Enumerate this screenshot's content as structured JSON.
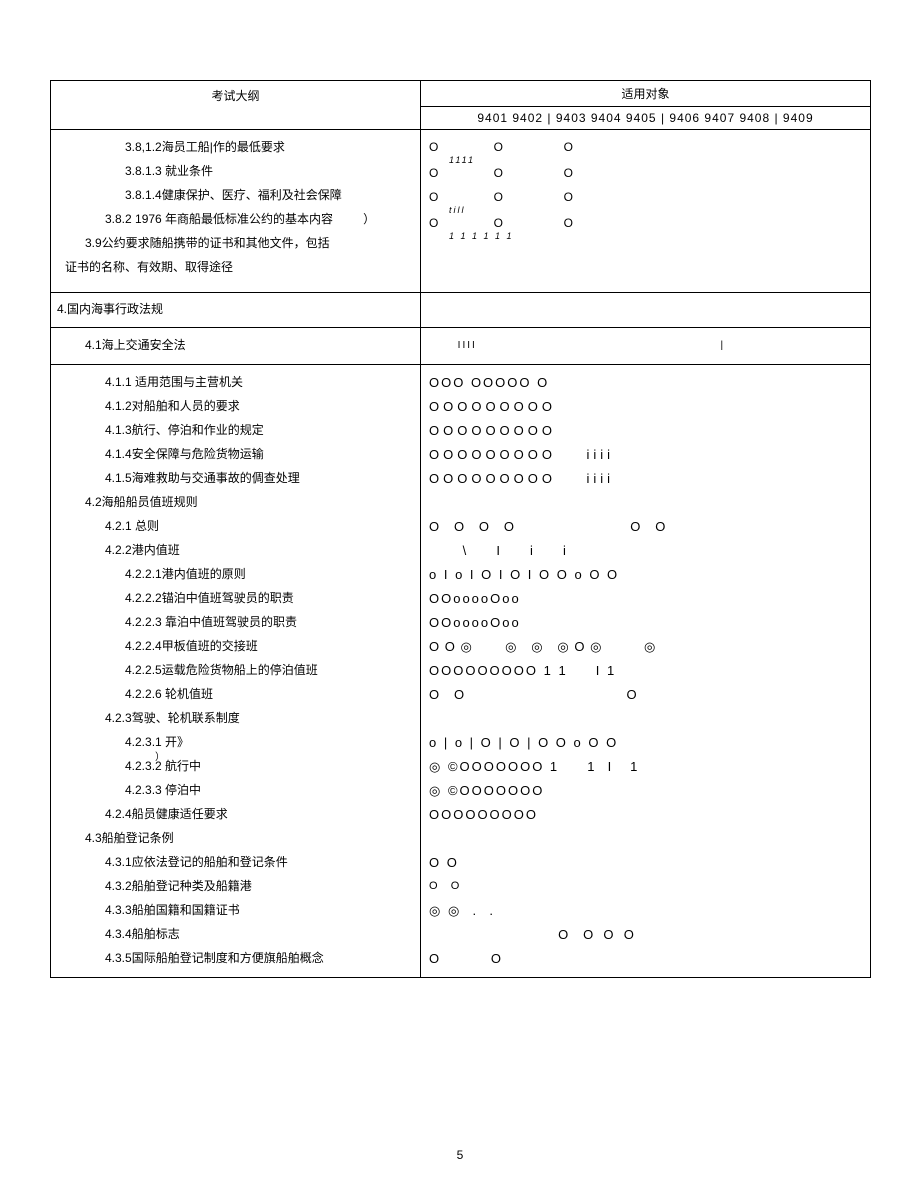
{
  "header": {
    "left": "考试大纲",
    "right": "适用对象",
    "codes": "9401 9402 | 9403 9404 9405 | 9406 9407 9408 | 9409"
  },
  "section1": {
    "items": [
      {
        "label": "3.8,1.2海员工船|作的最低要求",
        "marks": "O          O           O",
        "sub": "1111"
      },
      {
        "label": "3.8.1.3 就业条件",
        "marks": "O          O           O"
      },
      {
        "label": "3.8.1.4健康保护、医疗、福利及社会保障",
        "marks": "O          O           O",
        "sub": "till"
      },
      {
        "label": "3.8.2 1976 年商船最低标准公约的基本内容",
        "suffix": "）",
        "marks": "O          O           O",
        "sub": "1     1    1      1     1     1"
      },
      {
        "label": "3.9公约要求随船携带的证书和其他文件，包括",
        "marks": ""
      },
      {
        "label": "证书的名称、有效期、取得途径",
        "marks": "",
        "noindent": true
      }
    ]
  },
  "section2_header": "4.国内海事行政法规",
  "section2": {
    "items": [
      {
        "label": "4.1海上交通安全法",
        "marks": "      IIII                                                   |",
        "indent": 1
      },
      {
        "label": "4.1.1   适用范围与主营机关",
        "marks": "OOO OOOOO O",
        "indent": 2
      },
      {
        "label": "4.1.2对船舶和人员的要求",
        "marks": "OOOOOOOOO",
        "indent": 2,
        "circles": true
      },
      {
        "label": "4.1.3航行、停泊和作业的规定",
        "marks": "OOOOOOOOO",
        "indent": 2,
        "circles": true
      },
      {
        "label": "4.1.4安全保障与危险货物运输",
        "marks": "OOOOOOOOO    iiii",
        "indent": 2,
        "circles9": true
      },
      {
        "label": "4.1.5海难救助与交通事故的倜查处理",
        "marks": "OOOOOOOOO    iiii",
        "indent": 2,
        "circles9": true
      },
      {
        "label": "4.2海船船员值班规则",
        "marks": "",
        "indent": 1
      },
      {
        "label": "4.2.1 总则",
        "marks": "O   O   O   O                         O   O",
        "indent": 2,
        "bigO": true
      },
      {
        "label": "4.2.2港内值班",
        "marks": "      \\     I     i     i",
        "indent": 2
      },
      {
        "label": "4.2.2.1港内值班的原则",
        "marks": "o I o I O I O I O O o O O",
        "indent": 3
      },
      {
        "label": "4.2.2.2锚泊中值班驾驶员的职责",
        "marks": "OOooooOoo",
        "indent": 3
      },
      {
        "label": "4.2.2.3   靠泊中值班驾驶员的职责",
        "marks": "OOooooOoo",
        "indent": 3
      },
      {
        "label": "4.2.2.4甲板值班的交接班",
        "marks": "O O ◎       ◎   ◎   ◎ O ◎         ◎",
        "indent": 3,
        "bigO": true
      },
      {
        "label": "4.2.2.5运载危险货物船上的停泊值班",
        "marks": "OOOOOOOOO 1 1     I 1",
        "indent": 3
      },
      {
        "label": "4.2.2.6   轮机值班",
        "marks": "O   O                                   O",
        "indent": 3,
        "bigO": true
      },
      {
        "label": "4.2.3驾驶、轮机联系制度",
        "marks": "",
        "indent": 2
      },
      {
        "label": "4.2.3.1   开》",
        "marks": "o | o | O | O | O O o O O",
        "indent": 3,
        "suffix2": "）"
      },
      {
        "label": "4.2.3.2 航行中",
        "marks": "◎ ©OOOOOOO 1     1  I   1",
        "indent": 3
      },
      {
        "label": "4.2.3.3 停泊中",
        "marks": "◎ ©OOOOOOO",
        "indent": 3
      },
      {
        "label": "4.2.4船员健康适任要求",
        "marks": "OOOOOOOOO",
        "indent": 2
      },
      {
        "label": "4.3船舶登记条例",
        "marks": "",
        "indent": 1
      },
      {
        "label": "4.3.1应依法登记的船舶和登记条件",
        "marks": "O O",
        "indent": 2
      },
      {
        "label": "4.3.2船舶登记种类及船籍港",
        "marks": "O   O",
        "indent": 2,
        "bigO": true,
        "small": true
      },
      {
        "label": "4.3.3船舶国籍和国籍证书",
        "marks": "◎ ◎  .  .",
        "indent": 2
      },
      {
        "label": "4.3.4船舶标志",
        "marks": "                            O   O  O  O",
        "indent": 2,
        "bigO": true,
        "far": true
      },
      {
        "label": "4.3.5国际船舶登记制度和方便旗船舶概念",
        "marks": "O           O",
        "indent": 2,
        "bigO": true
      }
    ]
  },
  "footer": {
    "page": "5"
  }
}
